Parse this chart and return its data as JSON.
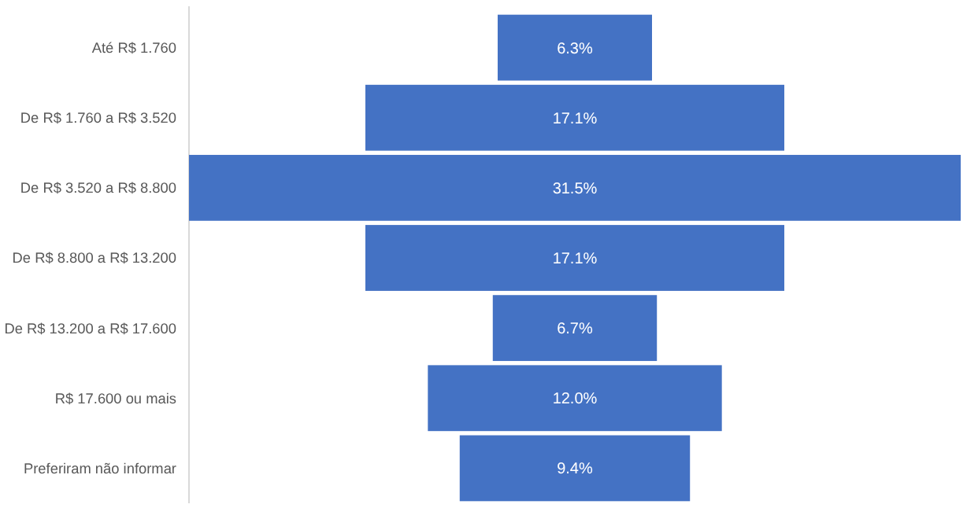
{
  "chart_data": {
    "type": "other",
    "categories": [
      "Até R$ 1.760",
      "De R$ 1.760 a R$ 3.520",
      "De R$ 3.520 a R$ 8.800",
      "De R$ 8.800 a R$ 13.200",
      "De R$ 13.200 a R$ 17.600",
      "R$ 17.600 ou mais",
      "Preferiram não informar"
    ],
    "values": [
      6.3,
      17.1,
      31.5,
      17.1,
      6.7,
      12.0,
      9.4
    ],
    "value_labels": [
      "6.3%",
      "17.1%",
      "31.5%",
      "17.1%",
      "6.7%",
      "12.0%",
      "9.4%"
    ],
    "color": "#4472c4"
  }
}
